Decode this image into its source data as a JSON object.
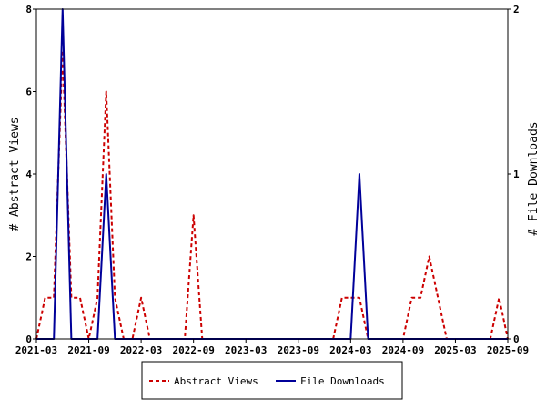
{
  "chart_data": {
    "type": "line",
    "ylabel_left": "# Abstract Views",
    "ylabel_right": "# File Downloads",
    "x_ticks": [
      "2021-03",
      "2021-09",
      "2022-03",
      "2022-09",
      "2023-03",
      "2023-09",
      "2024-03",
      "2024-09",
      "2025-03",
      "2025-09"
    ],
    "y_left_ticks": [
      "0",
      "2",
      "4",
      "6",
      "8"
    ],
    "y_right_ticks": [
      "0",
      "1",
      "2"
    ],
    "ylim_left": [
      0,
      8
    ],
    "ylim_right": [
      0,
      2
    ],
    "months": [
      "2021-03",
      "2021-04",
      "2021-05",
      "2021-06",
      "2021-07",
      "2021-08",
      "2021-09",
      "2021-10",
      "2021-11",
      "2021-12",
      "2022-01",
      "2022-02",
      "2022-03",
      "2022-04",
      "2022-05",
      "2022-06",
      "2022-07",
      "2022-08",
      "2022-09",
      "2022-10",
      "2022-11",
      "2022-12",
      "2023-01",
      "2023-02",
      "2023-03",
      "2023-04",
      "2023-05",
      "2023-06",
      "2023-07",
      "2023-08",
      "2023-09",
      "2023-10",
      "2023-11",
      "2023-12",
      "2024-01",
      "2024-02",
      "2024-03",
      "2024-04",
      "2024-05",
      "2024-06",
      "2024-07",
      "2024-08",
      "2024-09",
      "2024-10",
      "2024-11",
      "2024-12",
      "2025-01",
      "2025-02",
      "2025-03",
      "2025-04",
      "2025-05",
      "2025-06",
      "2025-07",
      "2025-08",
      "2025-09"
    ],
    "series": [
      {
        "name": "Abstract Views",
        "axis": "left",
        "color": "#cc0000",
        "dash": true,
        "values": [
          0,
          1,
          1,
          7,
          1,
          1,
          0,
          1,
          6,
          1,
          0,
          0,
          1,
          0,
          0,
          0,
          0,
          0,
          3,
          0,
          0,
          0,
          0,
          0,
          0,
          0,
          0,
          0,
          0,
          0,
          0,
          0,
          0,
          0,
          0,
          1,
          1,
          1,
          0,
          0,
          0,
          0,
          0,
          1,
          1,
          2,
          1,
          0,
          0,
          0,
          0,
          0,
          0,
          1,
          0
        ]
      },
      {
        "name": "File Downloads",
        "axis": "right",
        "color": "#000099",
        "dash": false,
        "values": [
          0,
          0,
          0,
          2,
          0,
          0,
          0,
          0,
          1,
          0,
          0,
          0,
          0,
          0,
          0,
          0,
          0,
          0,
          0,
          0,
          0,
          0,
          0,
          0,
          0,
          0,
          0,
          0,
          0,
          0,
          0,
          0,
          0,
          0,
          0,
          0,
          0,
          1,
          0,
          0,
          0,
          0,
          0,
          0,
          0,
          0,
          0,
          0,
          0,
          0,
          0,
          0,
          0,
          0,
          0
        ]
      }
    ],
    "legend": {
      "placement": "bottom-center",
      "entries": [
        {
          "label": "Abstract Views",
          "color": "#cc0000",
          "dash": true
        },
        {
          "label": "File Downloads",
          "color": "#000099",
          "dash": false
        }
      ]
    }
  }
}
